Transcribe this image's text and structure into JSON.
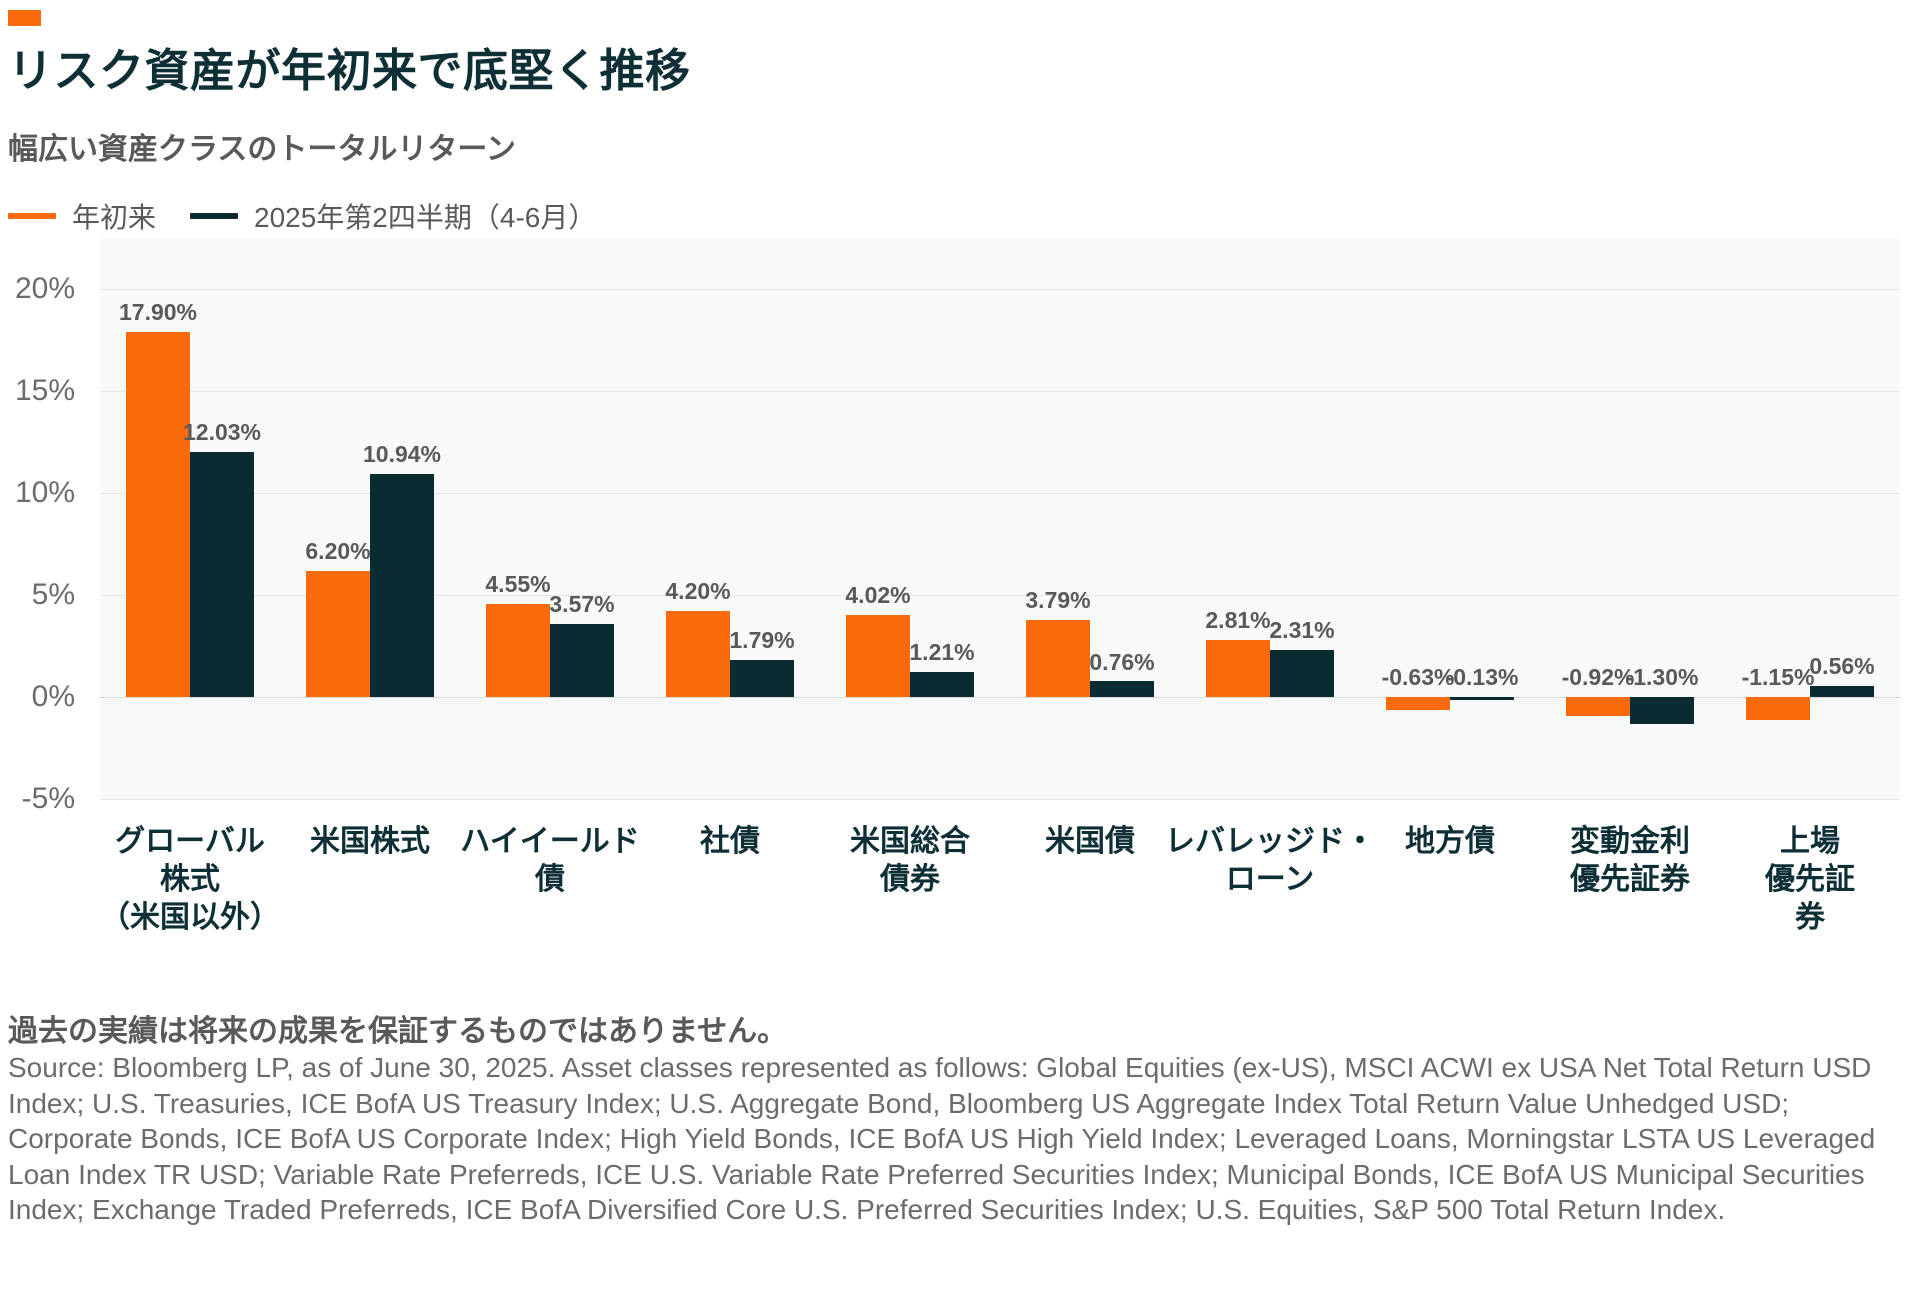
{
  "style": {
    "accent_color": "#F96B0A",
    "dark_color": "#0B2B33",
    "title_color": "#0F2F37",
    "plot_background": "#F8F9F9"
  },
  "chart_data": {
    "type": "bar",
    "title": "リスク資産が年初来で底堅く推移",
    "subtitle": "幅広い資産クラスのトータルリターン",
    "legend_position": "top-left",
    "grid": true,
    "ylim": [
      -5,
      22.5
    ],
    "yticks": [
      {
        "value": 20,
        "label": "20%"
      },
      {
        "value": 15,
        "label": "15%"
      },
      {
        "value": 10,
        "label": "10%"
      },
      {
        "value": 5,
        "label": "5%"
      },
      {
        "value": 0,
        "label": "0%"
      },
      {
        "value": -5,
        "label": "-5%"
      }
    ],
    "xlabel": "",
    "ylabel": "",
    "categories": [
      "グローバル\n株式\n（米国以外）",
      "米国株式",
      "ハイイールド\n債",
      "社債",
      "米国総合\n債券",
      "米国債",
      "レバレッジド・\nローン",
      "地方債",
      "変動金利\n優先証券",
      "上場\n優先証券"
    ],
    "series": [
      {
        "name": "年初来",
        "color": "#F96B0A",
        "values": [
          17.9,
          6.2,
          4.55,
          4.2,
          4.02,
          3.79,
          2.81,
          -0.63,
          -0.92,
          -1.15
        ]
      },
      {
        "name": "2025年第2四半期（4-6月）",
        "color": "#0B2B33",
        "values": [
          12.03,
          10.94,
          3.57,
          1.79,
          1.21,
          0.76,
          2.31,
          -0.13,
          -1.3,
          0.56
        ]
      }
    ],
    "value_label_format": "0.00%"
  },
  "footer": {
    "disclaimer": "過去の実績は将来の成果を保証するものではありません。",
    "source": "Source: Bloomberg LP, as of June 30, 2025. Asset classes represented as follows: Global Equities (ex-US), MSCI ACWI ex USA Net Total Return USD Index; U.S. Treasuries, ICE BofA US Treasury Index; U.S. Aggregate Bond, Bloomberg US Aggregate Index Total Return Value Unhedged USD; Corporate Bonds, ICE BofA US Corporate Index; High Yield Bonds, ICE BofA US High Yield Index; Leveraged Loans, Morningstar LSTA US Leveraged Loan Index TR USD; Variable Rate Preferreds, ICE U.S. Variable Rate Preferred Securities Index; Municipal Bonds, ICE BofA US Municipal Securities Index; Exchange Traded Preferreds, ICE BofA Diversified Core U.S. Preferred Securities Index; U.S. Equities, S&P 500 Total Return Index."
  }
}
